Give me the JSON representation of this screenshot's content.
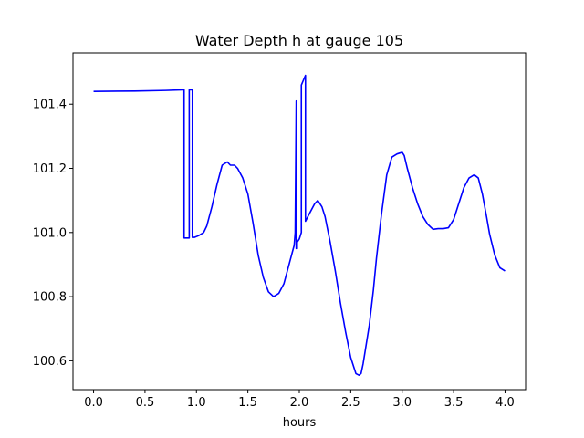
{
  "chart_data": {
    "type": "line",
    "title": "Water Depth h at gauge 105",
    "xlabel": "hours",
    "ylabel": "",
    "xlim": [
      -0.2,
      4.2
    ],
    "ylim": [
      100.51,
      101.56
    ],
    "xticks": [
      0.0,
      0.5,
      1.0,
      1.5,
      2.0,
      2.5,
      3.0,
      3.5,
      4.0
    ],
    "xtick_labels": [
      "0.0",
      "0.5",
      "1.0",
      "1.5",
      "2.0",
      "2.5",
      "3.0",
      "3.5",
      "4.0"
    ],
    "yticks": [
      100.6,
      100.8,
      101.0,
      101.2,
      101.4
    ],
    "ytick_labels": [
      "100.6",
      "100.8",
      "101.0",
      "101.2",
      "101.4"
    ],
    "grid": false,
    "series": [
      {
        "color": "#0000ff",
        "x": [
          0.0,
          0.4,
          0.7,
          0.87,
          0.88,
          0.88,
          0.93,
          0.93,
          0.96,
          0.96,
          0.98,
          1.02,
          1.07,
          1.1,
          1.15,
          1.2,
          1.25,
          1.3,
          1.33,
          1.37,
          1.4,
          1.45,
          1.5,
          1.55,
          1.6,
          1.65,
          1.7,
          1.75,
          1.8,
          1.85,
          1.9,
          1.95,
          1.96,
          1.97,
          1.97,
          1.98,
          1.98,
          2.0,
          2.02,
          2.02,
          2.06,
          2.06,
          2.1,
          2.15,
          2.18,
          2.22,
          2.25,
          2.3,
          2.35,
          2.4,
          2.45,
          2.5,
          2.55,
          2.58,
          2.6,
          2.62,
          2.64,
          2.68,
          2.72,
          2.75,
          2.8,
          2.85,
          2.9,
          2.95,
          3.0,
          3.02,
          3.05,
          3.1,
          3.15,
          3.2,
          3.25,
          3.3,
          3.35,
          3.4,
          3.45,
          3.5,
          3.55,
          3.6,
          3.65,
          3.7,
          3.74,
          3.78,
          3.82,
          3.85,
          3.9,
          3.95,
          4.0
        ],
        "y": [
          101.44,
          101.441,
          101.443,
          101.445,
          101.445,
          100.983,
          100.983,
          101.445,
          101.445,
          100.985,
          100.985,
          100.99,
          101.0,
          101.02,
          101.08,
          101.15,
          101.21,
          101.22,
          101.21,
          101.21,
          101.2,
          101.17,
          101.12,
          101.03,
          100.93,
          100.86,
          100.815,
          100.8,
          100.81,
          100.84,
          100.9,
          100.96,
          101.0,
          101.41,
          100.95,
          100.95,
          100.97,
          100.98,
          101.0,
          101.46,
          101.49,
          101.035,
          101.06,
          101.09,
          101.1,
          101.08,
          101.05,
          100.97,
          100.88,
          100.78,
          100.69,
          100.61,
          100.56,
          100.555,
          100.56,
          100.59,
          100.63,
          100.71,
          100.82,
          100.92,
          101.06,
          101.18,
          101.235,
          101.245,
          101.25,
          101.24,
          101.2,
          101.14,
          101.09,
          101.05,
          101.025,
          101.01,
          101.012,
          101.012,
          101.015,
          101.04,
          101.09,
          101.14,
          101.17,
          101.18,
          101.17,
          101.12,
          101.05,
          100.995,
          100.93,
          100.89,
          100.88
        ]
      }
    ]
  }
}
